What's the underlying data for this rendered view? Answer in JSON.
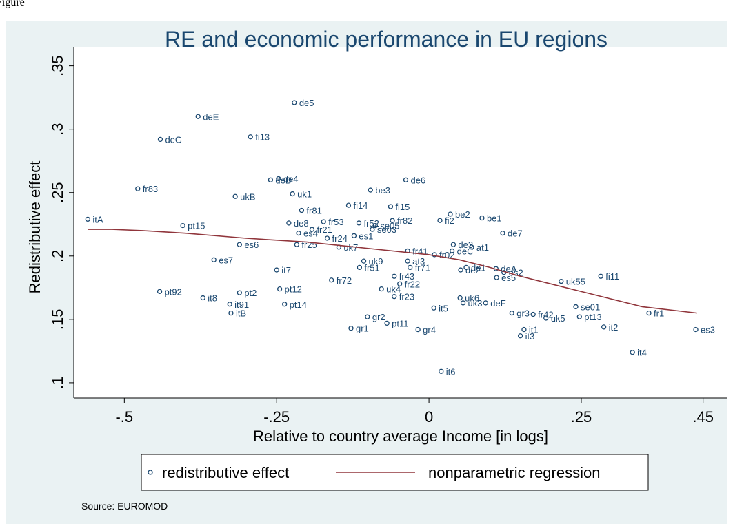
{
  "caption": "Figure",
  "chart_data": {
    "type": "scatter",
    "title": "RE and economic performance in EU regions",
    "x_label": "Relative to country average Income [in logs]",
    "y_label": "Redistributive effect",
    "source": "Source: EUROMOD",
    "xlim": [
      -0.583,
      0.49
    ],
    "ylim": [
      0.088,
      0.365
    ],
    "xticks": [
      {
        "value": -0.5,
        "label": "-.5"
      },
      {
        "value": -0.25,
        "label": "-.25"
      },
      0,
      {
        "value": 0.25,
        "label": ".25"
      },
      {
        "value": 0.45,
        "label": ".45"
      }
    ],
    "yticks": [
      {
        "value": 0.1,
        "label": ".1"
      },
      {
        "value": 0.15,
        "label": ".15"
      },
      {
        "value": 0.2,
        "label": ".2"
      },
      {
        "value": 0.25,
        "label": ".25"
      },
      {
        "value": 0.3,
        "label": ".3"
      },
      {
        "value": 0.35,
        "label": ".35"
      }
    ],
    "grid": false,
    "legend": "bottom",
    "series": [
      {
        "name": "redistributive effect",
        "color": "#1a476f",
        "kind": "points",
        "x": [
          -0.56,
          -0.478,
          -0.441,
          -0.379,
          -0.293,
          -0.221,
          -0.404,
          -0.311,
          -0.353,
          -0.442,
          -0.371,
          -0.311,
          -0.327,
          -0.325,
          -0.25,
          -0.245,
          -0.237,
          -0.217,
          -0.214,
          -0.23,
          -0.209,
          -0.26,
          -0.247,
          -0.224,
          -0.318,
          -0.192,
          -0.167,
          -0.173,
          -0.132,
          -0.096,
          -0.063,
          -0.038,
          -0.115,
          -0.093,
          -0.088,
          -0.123,
          -0.06,
          0.018,
          0.035,
          0.087,
          0.121,
          0.04,
          0.07,
          0.038,
          -0.035,
          0.009,
          -0.035,
          -0.031,
          0.061,
          0.052,
          0.11,
          0.111,
          0.123,
          0.217,
          0.282,
          -0.114,
          -0.16,
          -0.057,
          -0.048,
          -0.078,
          -0.057,
          -0.107,
          -0.148,
          0.008,
          0.051,
          0.056,
          0.093,
          0.136,
          0.171,
          0.192,
          0.241,
          0.247,
          0.156,
          0.15,
          0.287,
          0.361,
          0.438,
          0.334,
          0.02,
          -0.101,
          -0.128,
          -0.069,
          -0.018
        ],
        "values": [
          0.229,
          0.253,
          0.292,
          0.31,
          0.294,
          0.321,
          0.224,
          0.209,
          0.197,
          0.172,
          0.167,
          0.171,
          0.162,
          0.155,
          0.189,
          0.174,
          0.162,
          0.209,
          0.218,
          0.226,
          0.236,
          0.26,
          0.261,
          0.249,
          0.247,
          0.221,
          0.214,
          0.227,
          0.24,
          0.252,
          0.239,
          0.26,
          0.226,
          0.221,
          0.224,
          0.216,
          0.228,
          0.228,
          0.233,
          0.23,
          0.218,
          0.209,
          0.207,
          0.204,
          0.204,
          0.201,
          0.196,
          0.191,
          0.191,
          0.189,
          0.19,
          0.183,
          0.187,
          0.18,
          0.184,
          0.191,
          0.181,
          0.184,
          0.178,
          0.174,
          0.168,
          0.196,
          0.207,
          0.159,
          0.167,
          0.163,
          0.163,
          0.155,
          0.154,
          0.151,
          0.16,
          0.152,
          0.142,
          0.137,
          0.144,
          0.155,
          0.142,
          0.124,
          0.109,
          0.152,
          0.143,
          0.147,
          0.142
        ],
        "labels": [
          "itA",
          "fr83",
          "deG",
          "deE",
          "fi13",
          "de5",
          "pt15",
          "es6",
          "es7",
          "pt92",
          "it8",
          "pt2",
          "it91",
          "itB",
          "it7",
          "pt12",
          "pt14",
          "fr25",
          "es4",
          "de8",
          "fr81",
          "deD",
          "de4",
          "uk1",
          "ukB",
          "fr21",
          "fr24",
          "fr53",
          "fi14",
          "be3",
          "fi15",
          "de6",
          "fr52",
          "se03",
          "se05",
          "es1",
          "fr82",
          "fi2",
          "be2",
          "be1",
          "de7",
          "de3",
          "at1",
          "deC",
          "fr41",
          "fr02",
          "at3",
          "fr71",
          "de1",
          "de2",
          "deA",
          "es5",
          "es2",
          "uk55",
          "fi11",
          "fr51",
          "fr72",
          "fr43",
          "fr22",
          "uk4",
          "fr23",
          "uk9",
          "uk7",
          "it5",
          "uk6",
          "uk3",
          "deF",
          "gr3",
          "fr42",
          "uk5",
          "se01",
          "pt13",
          "it1",
          "it3",
          "it2",
          "fr1",
          "es3",
          "it4",
          "it6",
          "gr2",
          "gr1",
          "pt11",
          "gr4"
        ]
      },
      {
        "name": "nonparametric regression",
        "color": "#90353b",
        "kind": "line",
        "x": [
          -0.56,
          -0.52,
          -0.47,
          -0.4,
          -0.3,
          -0.2,
          -0.1,
          0,
          0.05,
          0.1,
          0.15,
          0.2,
          0.25,
          0.3,
          0.35,
          0.44
        ],
        "values": [
          0.221,
          0.221,
          0.22,
          0.218,
          0.214,
          0.211,
          0.206,
          0.201,
          0.197,
          0.191,
          0.184,
          0.178,
          0.172,
          0.166,
          0.16,
          0.155
        ]
      }
    ]
  }
}
